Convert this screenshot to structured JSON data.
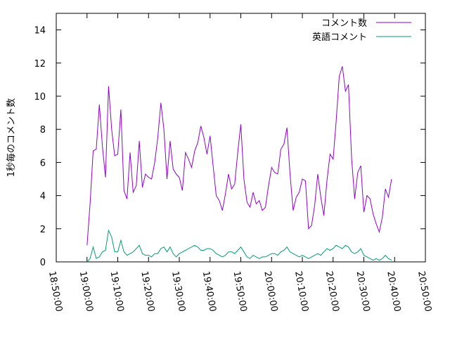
{
  "chart_data": {
    "type": "line",
    "title": "",
    "xlabel": "",
    "ylabel": "1秒毎のコメント数",
    "ylim": [
      0,
      15
    ],
    "yticks": [
      0,
      2,
      4,
      6,
      8,
      10,
      12,
      14
    ],
    "xlim": [
      0,
      120
    ],
    "xticks": [
      {
        "t": 0,
        "label": "18:50:00"
      },
      {
        "t": 10,
        "label": "19:00:00"
      },
      {
        "t": 20,
        "label": "19:10:00"
      },
      {
        "t": 30,
        "label": "19:20:00"
      },
      {
        "t": 40,
        "label": "19:30:00"
      },
      {
        "t": 50,
        "label": "19:40:00"
      },
      {
        "t": 60,
        "label": "19:50:00"
      },
      {
        "t": 70,
        "label": "20:00:00"
      },
      {
        "t": 80,
        "label": "20:10:00"
      },
      {
        "t": 90,
        "label": "20:20:00"
      },
      {
        "t": 100,
        "label": "20:30:00"
      },
      {
        "t": 110,
        "label": "20:40:00"
      },
      {
        "t": 120,
        "label": "20:50:00"
      }
    ],
    "legend_position": "top-right",
    "grid": false,
    "series": [
      {
        "name": "コメント数",
        "color": "#9400d3",
        "points": [
          [
            10,
            1.0
          ],
          [
            11,
            3.5
          ],
          [
            12,
            6.7
          ],
          [
            13,
            6.8
          ],
          [
            14,
            9.5
          ],
          [
            15,
            7.0
          ],
          [
            16,
            5.1
          ],
          [
            17,
            10.6
          ],
          [
            18,
            8.0
          ],
          [
            19,
            6.4
          ],
          [
            20,
            6.5
          ],
          [
            21,
            9.2
          ],
          [
            22,
            4.3
          ],
          [
            23,
            3.8
          ],
          [
            24,
            6.6
          ],
          [
            25,
            4.2
          ],
          [
            26,
            4.6
          ],
          [
            27,
            7.3
          ],
          [
            28,
            4.5
          ],
          [
            29,
            5.3
          ],
          [
            30,
            5.1
          ],
          [
            31,
            5.0
          ],
          [
            32,
            6.0
          ],
          [
            33,
            7.5
          ],
          [
            34,
            9.6
          ],
          [
            35,
            8.0
          ],
          [
            36,
            5.0
          ],
          [
            37,
            7.3
          ],
          [
            38,
            5.6
          ],
          [
            39,
            5.3
          ],
          [
            40,
            5.1
          ],
          [
            41,
            4.3
          ],
          [
            42,
            6.6
          ],
          [
            43,
            6.2
          ],
          [
            44,
            5.7
          ],
          [
            45,
            6.7
          ],
          [
            46,
            7.2
          ],
          [
            47,
            8.2
          ],
          [
            48,
            7.5
          ],
          [
            49,
            6.5
          ],
          [
            50,
            7.6
          ],
          [
            51,
            5.8
          ],
          [
            52,
            4.0
          ],
          [
            53,
            3.7
          ],
          [
            54,
            3.1
          ],
          [
            55,
            4.1
          ],
          [
            56,
            5.3
          ],
          [
            57,
            4.4
          ],
          [
            58,
            4.7
          ],
          [
            59,
            6.6
          ],
          [
            60,
            8.3
          ],
          [
            61,
            5.0
          ],
          [
            62,
            3.6
          ],
          [
            63,
            3.3
          ],
          [
            64,
            4.2
          ],
          [
            65,
            3.5
          ],
          [
            66,
            3.7
          ],
          [
            67,
            3.1
          ],
          [
            68,
            3.3
          ],
          [
            69,
            4.6
          ],
          [
            70,
            5.7
          ],
          [
            71,
            5.4
          ],
          [
            72,
            5.3
          ],
          [
            73,
            6.8
          ],
          [
            74,
            7.1
          ],
          [
            75,
            8.1
          ],
          [
            76,
            5.3
          ],
          [
            77,
            3.1
          ],
          [
            78,
            3.9
          ],
          [
            79,
            4.2
          ],
          [
            80,
            5.0
          ],
          [
            81,
            4.9
          ],
          [
            82,
            2.0
          ],
          [
            83,
            2.2
          ],
          [
            84,
            3.4
          ],
          [
            85,
            5.3
          ],
          [
            86,
            3.9
          ],
          [
            87,
            2.8
          ],
          [
            88,
            4.9
          ],
          [
            89,
            6.5
          ],
          [
            90,
            6.2
          ],
          [
            91,
            8.5
          ],
          [
            92,
            11.2
          ],
          [
            93,
            11.8
          ],
          [
            94,
            10.3
          ],
          [
            95,
            10.7
          ],
          [
            96,
            6.3
          ],
          [
            97,
            3.8
          ],
          [
            98,
            5.4
          ],
          [
            99,
            5.8
          ],
          [
            100,
            3.0
          ],
          [
            101,
            4.0
          ],
          [
            102,
            3.8
          ],
          [
            103,
            2.9
          ],
          [
            104,
            2.3
          ],
          [
            105,
            1.8
          ],
          [
            106,
            2.7
          ],
          [
            107,
            4.4
          ],
          [
            108,
            3.9
          ],
          [
            109,
            5.0
          ]
        ]
      },
      {
        "name": "英語コメント",
        "color": "#009e73",
        "points": [
          [
            10,
            0.0
          ],
          [
            11,
            0.2
          ],
          [
            12,
            0.9
          ],
          [
            13,
            0.2
          ],
          [
            14,
            0.3
          ],
          [
            15,
            0.6
          ],
          [
            16,
            0.7
          ],
          [
            17,
            1.9
          ],
          [
            18,
            1.5
          ],
          [
            19,
            0.6
          ],
          [
            20,
            0.6
          ],
          [
            21,
            1.3
          ],
          [
            22,
            0.6
          ],
          [
            23,
            0.4
          ],
          [
            24,
            0.5
          ],
          [
            25,
            0.6
          ],
          [
            26,
            0.8
          ],
          [
            27,
            1.0
          ],
          [
            28,
            0.5
          ],
          [
            29,
            0.4
          ],
          [
            30,
            0.4
          ],
          [
            31,
            0.3
          ],
          [
            32,
            0.5
          ],
          [
            33,
            0.5
          ],
          [
            34,
            0.8
          ],
          [
            35,
            0.9
          ],
          [
            36,
            0.6
          ],
          [
            37,
            0.9
          ],
          [
            38,
            0.5
          ],
          [
            39,
            0.3
          ],
          [
            40,
            0.5
          ],
          [
            41,
            0.6
          ],
          [
            42,
            0.7
          ],
          [
            43,
            0.8
          ],
          [
            44,
            0.9
          ],
          [
            45,
            1.0
          ],
          [
            46,
            0.9
          ],
          [
            47,
            0.7
          ],
          [
            48,
            0.7
          ],
          [
            49,
            0.8
          ],
          [
            50,
            0.8
          ],
          [
            51,
            0.7
          ],
          [
            52,
            0.5
          ],
          [
            53,
            0.4
          ],
          [
            54,
            0.3
          ],
          [
            55,
            0.4
          ],
          [
            56,
            0.6
          ],
          [
            57,
            0.6
          ],
          [
            58,
            0.5
          ],
          [
            59,
            0.7
          ],
          [
            60,
            0.9
          ],
          [
            61,
            0.6
          ],
          [
            62,
            0.3
          ],
          [
            63,
            0.2
          ],
          [
            64,
            0.4
          ],
          [
            65,
            0.3
          ],
          [
            66,
            0.2
          ],
          [
            67,
            0.3
          ],
          [
            68,
            0.3
          ],
          [
            69,
            0.4
          ],
          [
            70,
            0.5
          ],
          [
            71,
            0.5
          ],
          [
            72,
            0.4
          ],
          [
            73,
            0.6
          ],
          [
            74,
            0.7
          ],
          [
            75,
            0.9
          ],
          [
            76,
            0.6
          ],
          [
            77,
            0.5
          ],
          [
            78,
            0.4
          ],
          [
            79,
            0.3
          ],
          [
            80,
            0.4
          ],
          [
            81,
            0.3
          ],
          [
            82,
            0.2
          ],
          [
            83,
            0.3
          ],
          [
            84,
            0.4
          ],
          [
            85,
            0.5
          ],
          [
            86,
            0.4
          ],
          [
            87,
            0.6
          ],
          [
            88,
            0.8
          ],
          [
            89,
            0.7
          ],
          [
            90,
            0.8
          ],
          [
            91,
            1.0
          ],
          [
            92,
            0.9
          ],
          [
            93,
            0.8
          ],
          [
            94,
            1.0
          ],
          [
            95,
            0.9
          ],
          [
            96,
            0.6
          ],
          [
            97,
            0.5
          ],
          [
            98,
            0.6
          ],
          [
            99,
            0.8
          ],
          [
            100,
            0.4
          ],
          [
            101,
            0.3
          ],
          [
            102,
            0.2
          ],
          [
            103,
            0.1
          ],
          [
            104,
            0.2
          ],
          [
            105,
            0.1
          ],
          [
            106,
            0.2
          ],
          [
            107,
            0.4
          ],
          [
            108,
            0.2
          ],
          [
            109,
            0.1
          ]
        ]
      }
    ]
  }
}
